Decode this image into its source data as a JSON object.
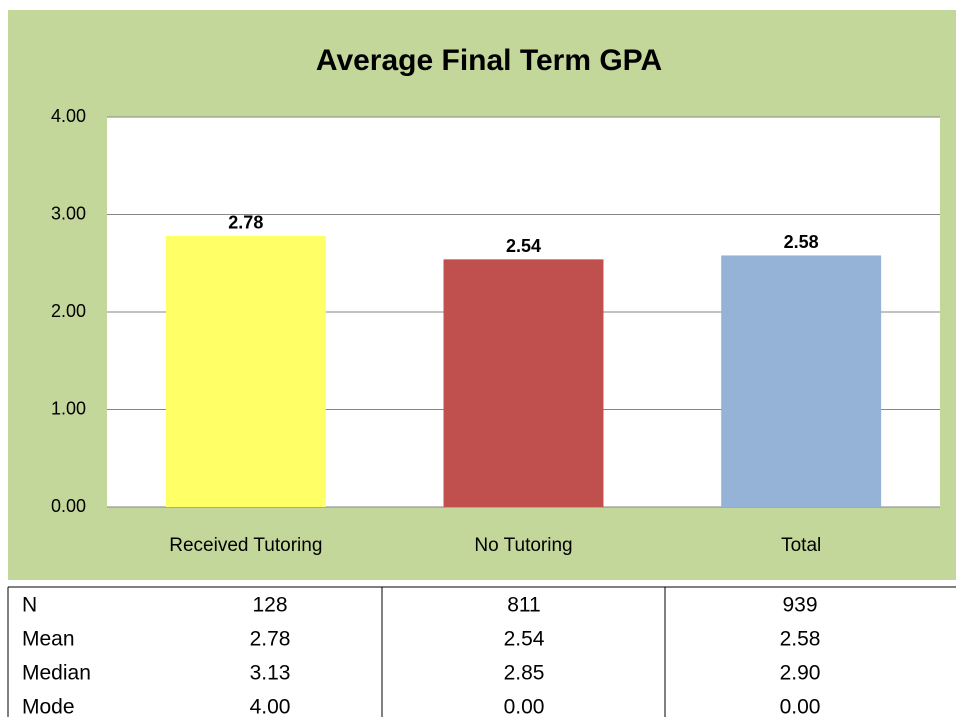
{
  "chart_data": {
    "type": "bar",
    "title": "Average Final Term GPA",
    "categories": [
      "Received Tutoring",
      "No Tutoring",
      "Total"
    ],
    "values": [
      2.78,
      2.54,
      2.58
    ],
    "colors": [
      "#ffff66",
      "#c0504d",
      "#95b3d7"
    ],
    "ylim": [
      0,
      4
    ],
    "yticks": [
      {
        "value": 0,
        "label": "0.00"
      },
      {
        "value": 1,
        "label": "1.00"
      },
      {
        "value": 2,
        "label": "2.00"
      },
      {
        "value": 3,
        "label": "3.00"
      },
      {
        "value": 4,
        "label": "4.00"
      }
    ],
    "grid": true
  },
  "table": {
    "rows": [
      [
        "N",
        "128",
        "811",
        "939"
      ],
      [
        "Mean",
        "2.78",
        "2.54",
        "2.58"
      ],
      [
        "Median",
        "3.13",
        "2.85",
        "2.90"
      ],
      [
        "Mode",
        "4.00",
        "0.00",
        "0.00"
      ]
    ]
  }
}
